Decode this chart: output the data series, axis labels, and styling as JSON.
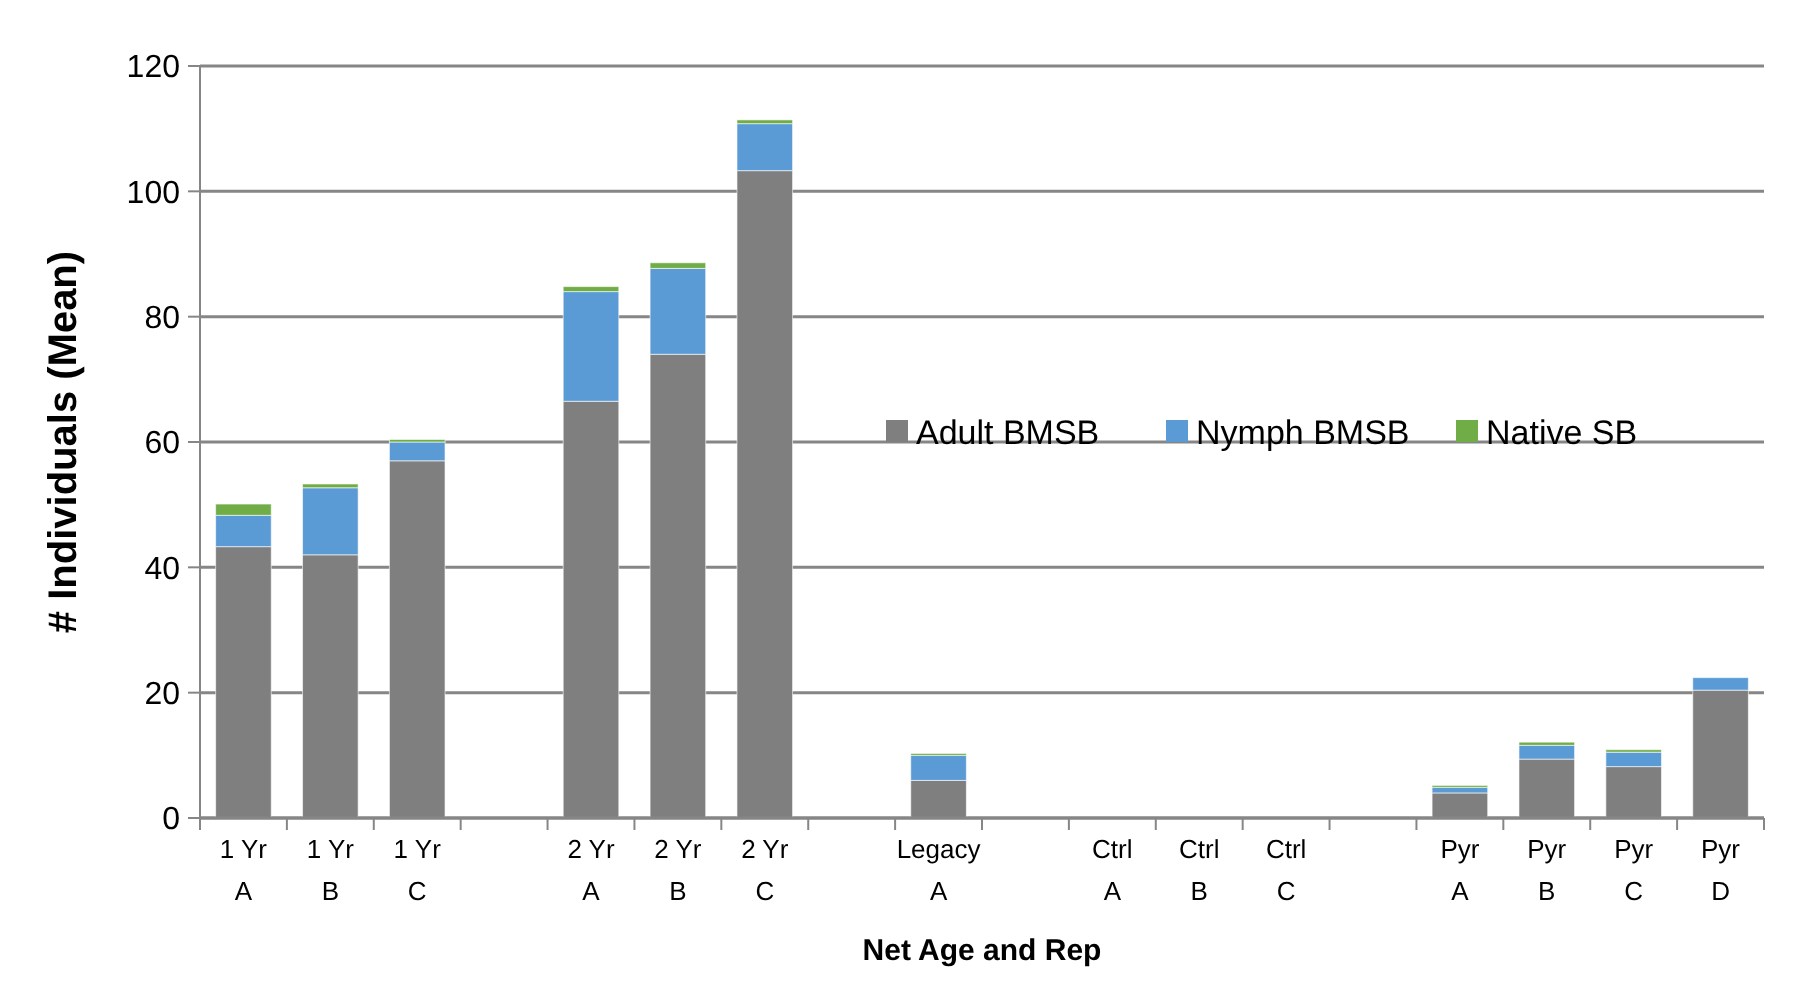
{
  "chart_data": {
    "type": "bar",
    "stacked": true,
    "xlabel": "Net Age and Rep",
    "ylabel": "# Individuals (Mean)",
    "categories": [
      "1 Yr\nA",
      "1 Yr\nB",
      "1 Yr\nC",
      null,
      "2 Yr\nA",
      "2 Yr\nB",
      "2 Yr\nC",
      null,
      "Legacy\nA",
      null,
      "Ctrl\nA",
      "Ctrl\nB",
      "Ctrl\nC",
      null,
      "Pyr\nA",
      "Pyr\nB",
      "Pyr\nC",
      "Pyr\nD"
    ],
    "series": [
      {
        "name": "Adult BMSB",
        "color": "#7f7f7f",
        "values": [
          43.3,
          42,
          57,
          null,
          66.5,
          74,
          103.3,
          null,
          6,
          null,
          0,
          0,
          0,
          null,
          4,
          9.4,
          8.2,
          20.4
        ]
      },
      {
        "name": "Nymph BMSB",
        "color": "#5b9bd5",
        "values": [
          5,
          10.7,
          3,
          null,
          17.5,
          13.7,
          7.5,
          null,
          4,
          null,
          0,
          0,
          0,
          null,
          0.9,
          2.2,
          2.3,
          2
        ]
      },
      {
        "name": "Native SB",
        "color": "#70ad47",
        "values": [
          1.8,
          0.6,
          0.4,
          null,
          0.8,
          0.9,
          0.6,
          null,
          0.3,
          null,
          0,
          0,
          0,
          null,
          0.3,
          0.5,
          0.4,
          null
        ]
      }
    ],
    "ylim": [
      0,
      120
    ],
    "yticks": [
      0,
      20,
      40,
      60,
      80,
      100,
      120
    ],
    "grid": "y",
    "legend": "right"
  }
}
